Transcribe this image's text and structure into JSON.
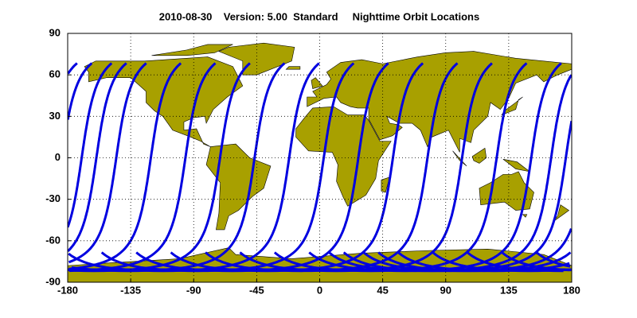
{
  "chart_data": {
    "type": "map",
    "title": "2010-08-30    Version: 5.00  Standard     Nighttime Orbit Locations",
    "xlim": [
      -180,
      180
    ],
    "ylim": [
      -90,
      90
    ],
    "xticks": [
      -180,
      -135,
      -90,
      -45,
      0,
      45,
      90,
      135,
      180
    ],
    "yticks": [
      -90,
      -60,
      -30,
      0,
      30,
      60,
      90
    ],
    "grid": true
  }
}
